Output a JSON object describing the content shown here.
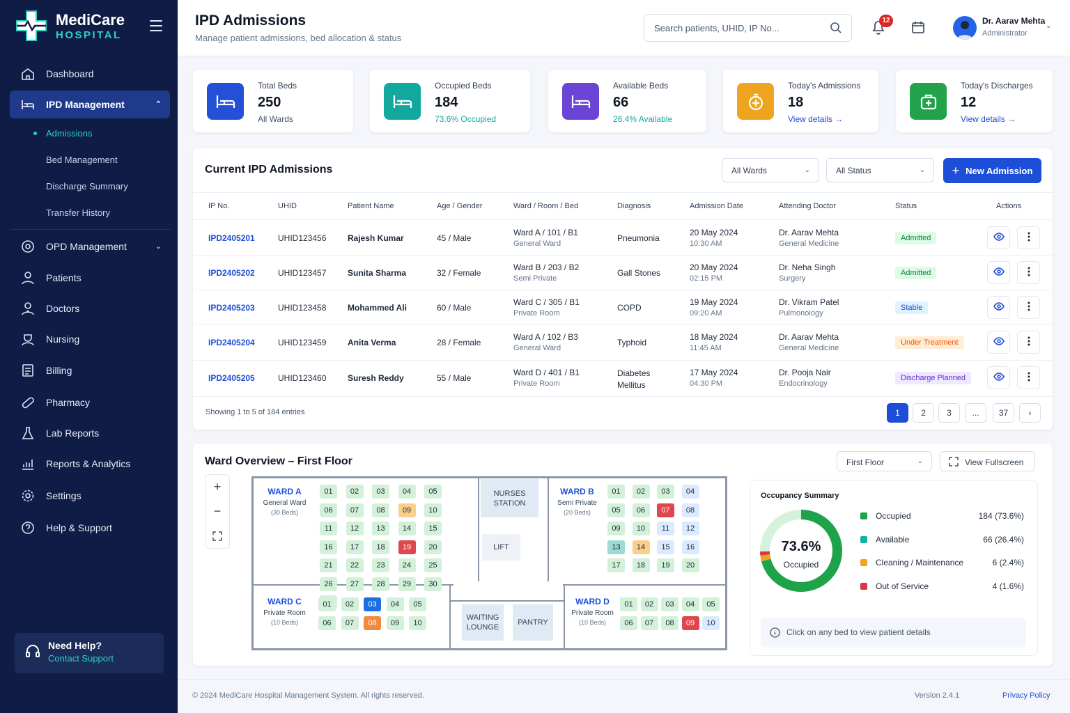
{
  "brand": {
    "name": "MediCare",
    "sub": "HOSPITAL"
  },
  "nav": {
    "items": [
      {
        "label": "Dashboard"
      },
      {
        "label": "IPD Management"
      },
      {
        "label": "OPD Management"
      },
      {
        "label": "Patients"
      },
      {
        "label": "Doctors"
      },
      {
        "label": "Nursing"
      },
      {
        "label": "Billing"
      },
      {
        "label": "Pharmacy"
      },
      {
        "label": "Lab Reports"
      },
      {
        "label": "Reports & Analytics"
      },
      {
        "label": "Settings"
      },
      {
        "label": "Help & Support"
      }
    ],
    "sub": [
      "Admissions",
      "Bed Management",
      "Discharge Summary",
      "Transfer History"
    ]
  },
  "help": {
    "title": "Need Help?",
    "link": "Contact Support"
  },
  "header": {
    "title": "IPD Admissions",
    "subtitle": "Manage patient admissions, bed allocation & status",
    "search_placeholder": "Search patients, UHID, IP No...",
    "notif_count": "12",
    "user_name": "Dr. Aarav Mehta",
    "user_role": "Administrator"
  },
  "stats": [
    {
      "label": "Total Beds",
      "value": "250",
      "sub": "All Wards",
      "color": "#2350d6"
    },
    {
      "label": "Occupied Beds",
      "value": "184",
      "sub": "73.6% Occupied",
      "color": "#13a89e"
    },
    {
      "label": "Available Beds",
      "value": "66",
      "sub": "26.4% Available",
      "color": "#6a44d4"
    },
    {
      "label": "Today's Admissions",
      "value": "18",
      "sub": "View details →",
      "color": "#efa420"
    },
    {
      "label": "Today's Discharges",
      "value": "12",
      "sub": "View details →",
      "color": "#22a24a"
    }
  ],
  "admissions": {
    "title": "Current IPD Admissions",
    "ward_filter": "All Wards",
    "status_filter": "All Status",
    "new_label": "New Admission",
    "columns": [
      "IP No.",
      "UHID",
      "Patient Name",
      "Age / Gender",
      "Ward / Room / Bed",
      "Diagnosis",
      "Admission Date",
      "Attending Doctor",
      "Status",
      "Actions"
    ],
    "rows": [
      {
        "ip": "IPD2405201",
        "uhid": "UHID123456",
        "name": "Rajesh Kumar",
        "age": "45 / Male",
        "ward": "Ward A / 101 / B1",
        "ward_type": "General Ward",
        "diag": "Pneumonia",
        "diag2": "",
        "date": "20 May 2024",
        "time": "10:30 AM",
        "doctor": "Dr. Aarav Mehta",
        "dept": "General Medicine",
        "status": "Admitted"
      },
      {
        "ip": "IPD2405202",
        "uhid": "UHID123457",
        "name": "Sunita Sharma",
        "age": "32 / Female",
        "ward": "Ward B / 203 / B2",
        "ward_type": "Semi Private",
        "diag": "Gall Stones",
        "diag2": "",
        "date": "20 May 2024",
        "time": "02:15 PM",
        "doctor": "Dr. Neha Singh",
        "dept": "Surgery",
        "status": "Admitted"
      },
      {
        "ip": "IPD2405203",
        "uhid": "UHID123458",
        "name": "Mohammed Ali",
        "age": "60 / Male",
        "ward": "Ward C / 305 / B1",
        "ward_type": "Private Room",
        "diag": "COPD",
        "diag2": "",
        "date": "19 May 2024",
        "time": "09:20 AM",
        "doctor": "Dr. Vikram Patel",
        "dept": "Pulmonology",
        "status": "Stable"
      },
      {
        "ip": "IPD2405204",
        "uhid": "UHID123459",
        "name": "Anita Verma",
        "age": "28 / Female",
        "ward": "Ward A / 102 / B3",
        "ward_type": "General Ward",
        "diag": "Typhoid",
        "diag2": "",
        "date": "18 May 2024",
        "time": "11:45 AM",
        "doctor": "Dr. Aarav Mehta",
        "dept": "General Medicine",
        "status": "Under Treatment"
      },
      {
        "ip": "IPD2405205",
        "uhid": "UHID123460",
        "name": "Suresh Reddy",
        "age": "55 / Male",
        "ward": "Ward D / 401 / B1",
        "ward_type": "Private Room",
        "diag": "Diabetes",
        "diag2": "Mellitus",
        "date": "17 May 2024",
        "time": "04:30 PM",
        "doctor": "Dr. Pooja Nair",
        "dept": "Endocrinology",
        "status": "Discharge Planned"
      }
    ],
    "showing": "Showing 1 to 5 of 184 entries",
    "pages": [
      "1",
      "2",
      "3",
      "...",
      "37"
    ]
  },
  "ward": {
    "title": "Ward Overview – First Floor",
    "floor": "First Floor",
    "fullscreen": "View Fullscreen",
    "wards": [
      {
        "name": "WARD A",
        "type": "General Ward",
        "beds": "(30 Beds)",
        "states": "oooooooocoooooooooxoooooooooooo"
      },
      {
        "name": "WARD B",
        "type": "Semi Private",
        "beds": "(20 Beds)",
        "states": "oooaooxaooaatcaaoooo"
      },
      {
        "name": "WARD C",
        "type": "Private Room",
        "beds": "(10 Beds)",
        "states": "oosooood oo"
      },
      {
        "name": "WARD D",
        "type": "Private Room",
        "beds": "(10 Beds)",
        "states": "oooooooox a"
      }
    ],
    "rooms": {
      "nurses": "NURSES STATION",
      "lift": "LIFT",
      "waiting": "WAITING LOUNGE",
      "pantry": "PANTRY"
    }
  },
  "occupancy": {
    "title": "Occupancy Summary",
    "pct": "73.6%",
    "pct_label": "Occupied",
    "legend": [
      {
        "label": "Occupied",
        "value": "184 (73.6%)",
        "color": "#1ea34a",
        "count": 184
      },
      {
        "label": "Available",
        "value": "66 (26.4%)",
        "color": "#14b3a5",
        "count": 66
      },
      {
        "label": "Cleaning / Maintenance",
        "value": "6  (2.4%)",
        "color": "#efa420",
        "count": 6
      },
      {
        "label": "Out of Service",
        "value": "4  (1.6%)",
        "color": "#dc3545",
        "count": 4
      }
    ],
    "hint": "Click on any bed to view patient details"
  },
  "footer": {
    "copy": "© 2024 MediCare Hospital Management System. All rights reserved.",
    "version": "Version 2.4.1",
    "privacy": "Privacy Policy"
  }
}
